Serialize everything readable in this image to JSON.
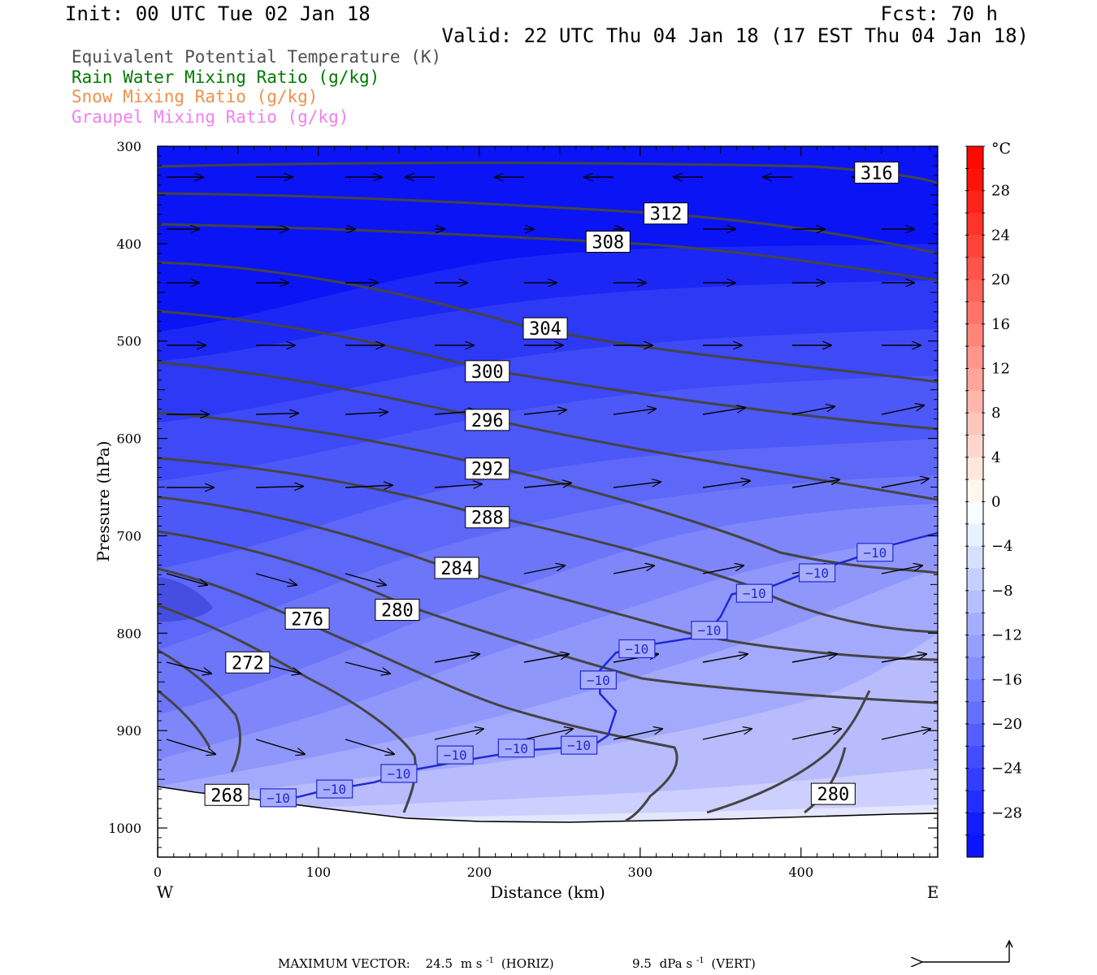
{
  "header": {
    "init": "Init: 00 UTC Tue 02 Jan 18",
    "fcst": "Fcst:   70 h",
    "valid": "Valid: 22 UTC Thu 04 Jan 18 (17 EST Thu 04 Jan 18)"
  },
  "legend": [
    {
      "label": "Equivalent Potential Temperature (K)",
      "color": "#505050"
    },
    {
      "label": "Rain Water Mixing Ratio (g/kg)",
      "color": "#007a00"
    },
    {
      "label": "Snow Mixing Ratio (g/kg)",
      "color": "#f0904a"
    },
    {
      "label": "Graupel Mixing Ratio (g/kg)",
      "color": "#f080f0"
    }
  ],
  "chart_data": {
    "type": "cross-section",
    "xlabel": "Distance (km)",
    "ylabel": "Pressure (hPa)",
    "xlim": [
      0,
      485
    ],
    "ylim": [
      1030,
      300
    ],
    "x_ticks": [
      "0",
      "100",
      "200",
      "300",
      "400"
    ],
    "y_ticks": [
      "300",
      "400",
      "500",
      "600",
      "700",
      "800",
      "900",
      "1000"
    ],
    "west_label": "W",
    "east_label": "E",
    "temperature_colorbar": {
      "unit": "°C",
      "labels": [
        "28",
        "24",
        "20",
        "16",
        "12",
        "8",
        "4",
        "0",
        "-4",
        "-8",
        "-12",
        "-16",
        "-20",
        "-24",
        "-28"
      ],
      "range": [
        -32,
        32
      ],
      "interval": 2
    },
    "theta_e_labels": [
      {
        "text": "316",
        "x": 447,
        "p": 327
      },
      {
        "text": "312",
        "x": 316,
        "p": 369
      },
      {
        "text": "308",
        "x": 280,
        "p": 398
      },
      {
        "text": "304",
        "x": 241,
        "p": 487
      },
      {
        "text": "300",
        "x": 205,
        "p": 531
      },
      {
        "text": "296",
        "x": 205,
        "p": 581
      },
      {
        "text": "292",
        "x": 205,
        "p": 631
      },
      {
        "text": "288",
        "x": 205,
        "p": 681
      },
      {
        "text": "284",
        "x": 186,
        "p": 733
      },
      {
        "text": "280",
        "x": 149,
        "p": 776
      },
      {
        "text": "276",
        "x": 93,
        "p": 785
      },
      {
        "text": "272",
        "x": 56,
        "p": 830
      },
      {
        "text": "268",
        "x": 43,
        "p": 966
      },
      {
        "text": "280",
        "x": 420,
        "p": 965
      }
    ],
    "isotherm_minus10": {
      "label": "−10",
      "points": [
        [
          70,
          975
        ],
        [
          100,
          963
        ],
        [
          135,
          953
        ],
        [
          160,
          940
        ],
        [
          200,
          928
        ],
        [
          230,
          920
        ],
        [
          270,
          916
        ],
        [
          280,
          905
        ],
        [
          285,
          880
        ],
        [
          275,
          862
        ],
        [
          275,
          838
        ],
        [
          285,
          820
        ],
        [
          305,
          812
        ],
        [
          340,
          803
        ],
        [
          350,
          783
        ],
        [
          357,
          760
        ],
        [
          380,
          753
        ],
        [
          400,
          740
        ],
        [
          430,
          725
        ],
        [
          455,
          710
        ],
        [
          485,
          697
        ]
      ],
      "label_positions": [
        [
          75,
          969
        ],
        [
          110,
          960
        ],
        [
          150,
          944
        ],
        [
          185,
          925
        ],
        [
          223,
          918
        ],
        [
          262,
          915
        ],
        [
          274,
          848
        ],
        [
          298,
          816
        ],
        [
          343,
          797
        ],
        [
          371,
          759
        ],
        [
          410,
          738
        ],
        [
          446,
          717
        ]
      ]
    },
    "max_vector_label": "MAXIMUM VECTOR:",
    "max_vector_horiz": "24.5",
    "max_vector_horiz_unit": "m s",
    "max_vector_horiz_exp": "-1",
    "max_vector_horiz_suffix": "(HORIZ)",
    "max_vector_vert": "9.5",
    "max_vector_vert_unit": "dPa s",
    "max_vector_vert_exp": "-1",
    "max_vector_vert_suffix": "(VERT)"
  }
}
